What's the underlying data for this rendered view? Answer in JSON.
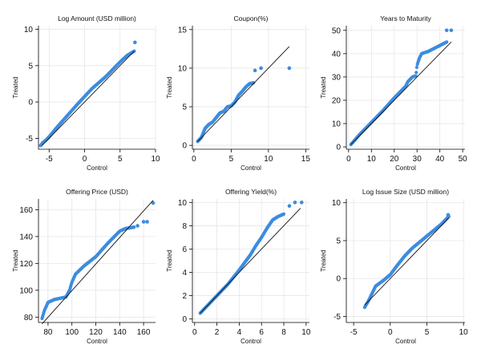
{
  "figure": {
    "xlabel": "Control",
    "ylabel": "Treated",
    "colors": {
      "points": "#3c8ce0",
      "diagonal": "#111111",
      "grid": "#e6e6e6",
      "axis": "#000000"
    }
  },
  "chart_data": [
    {
      "type": "scatter",
      "title": "Log Amount (USD million)",
      "xlabel": "Control",
      "ylabel": "Treated",
      "xlim": [
        -6.5,
        10
      ],
      "ylim": [
        -6.5,
        10.5
      ],
      "xticks": [
        -5,
        0,
        5,
        10
      ],
      "yticks": [
        -5,
        0,
        5,
        10
      ],
      "xtick_labels": [
        "-5",
        "0",
        "5",
        "10"
      ],
      "ytick_labels": [
        "-5",
        "0",
        "5",
        "10"
      ],
      "reference_line": [
        [
          -6,
          -6
        ],
        [
          7,
          7
        ]
      ],
      "qq_knots": [
        [
          -6.2,
          -6.0
        ],
        [
          -5.9,
          -5.6
        ],
        [
          -5.5,
          -5.3
        ],
        [
          -5.0,
          -4.8
        ],
        [
          -4.0,
          -3.6
        ],
        [
          -3.0,
          -2.5
        ],
        [
          -1.0,
          -0.3
        ],
        [
          1.0,
          1.8
        ],
        [
          3.0,
          3.5
        ],
        [
          5.0,
          5.5
        ],
        [
          6.0,
          6.4
        ],
        [
          7.0,
          7.0
        ]
      ],
      "outliers": [
        [
          7.1,
          8.2
        ]
      ]
    },
    {
      "type": "scatter",
      "title": "Coupon(%)",
      "xlabel": "Control",
      "ylabel": "Treated",
      "xlim": [
        -0.2,
        15.5
      ],
      "ylim": [
        -0.5,
        15.5
      ],
      "xticks": [
        0,
        5,
        10,
        15
      ],
      "yticks": [
        0,
        5,
        10,
        15
      ],
      "xtick_labels": [
        "0",
        "5",
        "10",
        "15"
      ],
      "ytick_labels": [
        "0",
        "5",
        "10",
        "15"
      ],
      "reference_line": [
        [
          0.5,
          0.5
        ],
        [
          12.8,
          12.8
        ]
      ],
      "qq_knots": [
        [
          0.5,
          0.5
        ],
        [
          1.0,
          1.0
        ],
        [
          1.5,
          2.2
        ],
        [
          2.0,
          2.7
        ],
        [
          2.5,
          3.0
        ],
        [
          3.0,
          3.6
        ],
        [
          3.5,
          4.2
        ],
        [
          4.0,
          4.4
        ],
        [
          4.5,
          5.0
        ],
        [
          5.0,
          5.1
        ],
        [
          5.5,
          5.6
        ],
        [
          6.0,
          6.5
        ],
        [
          6.5,
          7.0
        ],
        [
          7.0,
          7.6
        ],
        [
          7.5,
          8.0
        ],
        [
          8.0,
          8.1
        ]
      ],
      "outliers": [
        [
          8.2,
          9.7
        ],
        [
          9.0,
          10.0
        ],
        [
          12.8,
          10.0
        ]
      ]
    },
    {
      "type": "scatter",
      "title": "Years to Maturity",
      "xlabel": "Control",
      "ylabel": "Treated",
      "xlim": [
        -1,
        51
      ],
      "ylim": [
        -1,
        52
      ],
      "xticks": [
        0,
        10,
        20,
        30,
        40,
        50
      ],
      "yticks": [
        0,
        10,
        20,
        30,
        40,
        50
      ],
      "xtick_labels": [
        "0",
        "10",
        "20",
        "30",
        "40",
        "50"
      ],
      "ytick_labels": [
        "0",
        "10",
        "20",
        "30",
        "40",
        "50"
      ],
      "reference_line": [
        [
          1,
          1
        ],
        [
          45,
          45
        ]
      ],
      "qq_knots": [
        [
          1,
          1
        ],
        [
          5,
          5.5
        ],
        [
          10,
          10.5
        ],
        [
          15,
          15.5
        ],
        [
          20,
          21
        ],
        [
          25,
          26
        ],
        [
          26,
          28
        ],
        [
          28,
          30
        ],
        [
          29.5,
          30.5
        ],
        [
          30,
          35
        ],
        [
          31,
          38
        ],
        [
          32,
          40
        ],
        [
          35,
          41
        ],
        [
          40,
          43.5
        ],
        [
          43,
          45
        ]
      ],
      "outliers": [
        [
          43,
          50
        ],
        [
          45,
          50
        ]
      ]
    },
    {
      "type": "scatter",
      "title": "Offering Price (USD)",
      "xlabel": "Control",
      "ylabel": "Treated",
      "xlim": [
        72,
        170
      ],
      "ylim": [
        76,
        168
      ],
      "xticks": [
        80,
        100,
        120,
        140,
        160
      ],
      "yticks": [
        80,
        100,
        120,
        140,
        160
      ],
      "xtick_labels": [
        "80",
        "100",
        "120",
        "140",
        "160"
      ],
      "ytick_labels": [
        "80",
        "100",
        "120",
        "140",
        "160"
      ],
      "reference_line": [
        [
          75,
          75
        ],
        [
          168,
          167
        ]
      ],
      "qq_knots": [
        [
          75,
          79
        ],
        [
          77,
          85
        ],
        [
          80,
          91
        ],
        [
          85,
          93
        ],
        [
          90,
          94
        ],
        [
          95,
          95
        ],
        [
          98,
          100
        ],
        [
          100,
          106
        ],
        [
          103,
          112
        ],
        [
          110,
          118
        ],
        [
          120,
          125
        ],
        [
          130,
          135
        ],
        [
          140,
          144
        ],
        [
          145,
          146
        ],
        [
          152,
          147
        ]
      ],
      "outliers": [
        [
          155,
          148
        ],
        [
          160,
          151
        ],
        [
          163,
          151
        ],
        [
          168,
          165
        ]
      ]
    },
    {
      "type": "scatter",
      "title": "Offering Yield(%)",
      "xlabel": "Control",
      "ylabel": "Treated",
      "xlim": [
        -0.2,
        10.3
      ],
      "ylim": [
        -0.3,
        10.3
      ],
      "xticks": [
        0,
        2,
        4,
        6,
        8,
        10
      ],
      "yticks": [
        0,
        2,
        4,
        6,
        8,
        10
      ],
      "xtick_labels": [
        "0",
        "2",
        "4",
        "6",
        "8",
        "10"
      ],
      "ytick_labels": [
        "0",
        "2",
        "4",
        "6",
        "8",
        "10"
      ],
      "reference_line": [
        [
          0.5,
          0.5
        ],
        [
          9.5,
          9.5
        ]
      ],
      "qq_knots": [
        [
          0.5,
          0.5
        ],
        [
          1.0,
          1.0
        ],
        [
          2.0,
          2.0
        ],
        [
          3.0,
          3.0
        ],
        [
          4.0,
          4.2
        ],
        [
          5.0,
          5.5
        ],
        [
          5.5,
          6.3
        ],
        [
          6.0,
          7.0
        ],
        [
          6.5,
          7.8
        ],
        [
          7.0,
          8.5
        ],
        [
          7.5,
          8.8
        ],
        [
          8.0,
          9.0
        ]
      ],
      "outliers": [
        [
          8.5,
          9.7
        ],
        [
          9.0,
          10.0
        ],
        [
          9.6,
          10.0
        ]
      ]
    },
    {
      "type": "scatter",
      "title": "Log Issue Size (USD million)",
      "xlabel": "Control",
      "ylabel": "Treated",
      "xlim": [
        -6,
        10.2
      ],
      "ylim": [
        -5.8,
        10.5
      ],
      "xticks": [
        -5,
        0,
        5,
        10
      ],
      "yticks": [
        -5,
        0,
        5,
        10
      ],
      "xtick_labels": [
        "-5",
        "0",
        "5",
        "10"
      ],
      "ytick_labels": [
        "-5",
        "0",
        "5",
        "10"
      ],
      "reference_line": [
        [
          -3.5,
          -3.5
        ],
        [
          8,
          8
        ]
      ],
      "qq_knots": [
        [
          -3.5,
          -3.8
        ],
        [
          -3.0,
          -3.0
        ],
        [
          -2.5,
          -2.0
        ],
        [
          -2.0,
          -1.0
        ],
        [
          -1.0,
          -0.3
        ],
        [
          0.0,
          0.5
        ],
        [
          1.0,
          1.8
        ],
        [
          2.0,
          3.0
        ],
        [
          3.0,
          4.0
        ],
        [
          4.0,
          4.8
        ],
        [
          5.0,
          5.6
        ],
        [
          6.0,
          6.4
        ],
        [
          7.0,
          7.2
        ],
        [
          8.0,
          8.2
        ]
      ],
      "outliers": [
        [
          7.9,
          8.4
        ]
      ]
    }
  ]
}
